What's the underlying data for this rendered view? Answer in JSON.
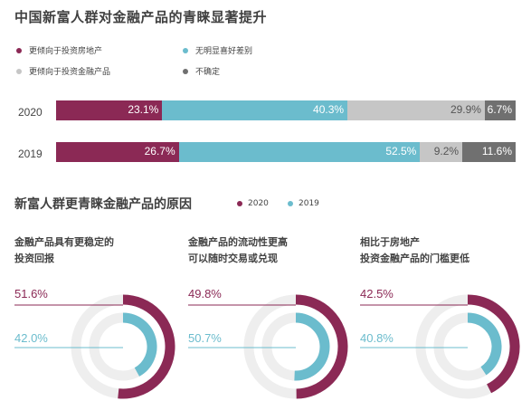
{
  "title": "中国新富人群对金融产品的青睐显著提升",
  "legend": [
    {
      "label": "更倾向于投资房地产",
      "color": "#8b2955"
    },
    {
      "label": "无明显喜好差别",
      "color": "#6bbccd"
    },
    {
      "label": "更倾向于投资金融产品",
      "color": "#c6c6c6"
    },
    {
      "label": "不确定",
      "color": "#707070"
    }
  ],
  "bars": [
    {
      "year": "2020",
      "labels": [
        "23.1%",
        "40.3%",
        "29.9%",
        "6.7%"
      ]
    },
    {
      "year": "2019",
      "labels": [
        "26.7%",
        "52.5%",
        "9.2%",
        "11.6%"
      ]
    }
  ],
  "subtitle": "新富人群更青睐金融产品的原因",
  "legend2": [
    {
      "label": "2020",
      "color": "#8b2955"
    },
    {
      "label": "2019",
      "color": "#6bbccd"
    }
  ],
  "donuts": [
    {
      "line1": "金融产品具有更稳定的",
      "line2": "投资回报",
      "v2020": "51.6%",
      "v2019": "42.0%"
    },
    {
      "line1": "金融产品的流动性更高",
      "line2": "可以随时交易或兑现",
      "v2020": "49.8%",
      "v2019": "50.7%"
    },
    {
      "line1": "相比于房地产",
      "line2": "投资金融产品的门槛更低",
      "v2020": "42.5%",
      "v2019": "40.8%"
    }
  ],
  "chart_data": [
    {
      "type": "bar",
      "title": "中国新富人群对金融产品的青睐显著提升",
      "categories": [
        "2020",
        "2019"
      ],
      "series": [
        {
          "name": "更倾向于投资房地产",
          "values": [
            23.1,
            26.7
          ]
        },
        {
          "name": "无明显喜好差别",
          "values": [
            40.3,
            52.5
          ]
        },
        {
          "name": "更倾向于投资金融产品",
          "values": [
            29.9,
            9.2
          ]
        },
        {
          "name": "不确定",
          "values": [
            6.7,
            11.6
          ]
        }
      ],
      "stacked": true,
      "orientation": "horizontal"
    },
    {
      "type": "pie",
      "title": "新富人群更青睐金融产品的原因",
      "categories": [
        "金融产品具有更稳定的投资回报",
        "金融产品的流动性更高可以随时交易或兑现",
        "相比于房地产投资金融产品的门槛更低"
      ],
      "series": [
        {
          "name": "2020",
          "values": [
            51.6,
            49.8,
            42.5
          ]
        },
        {
          "name": "2019",
          "values": [
            42.0,
            50.7,
            40.8
          ]
        }
      ]
    }
  ]
}
